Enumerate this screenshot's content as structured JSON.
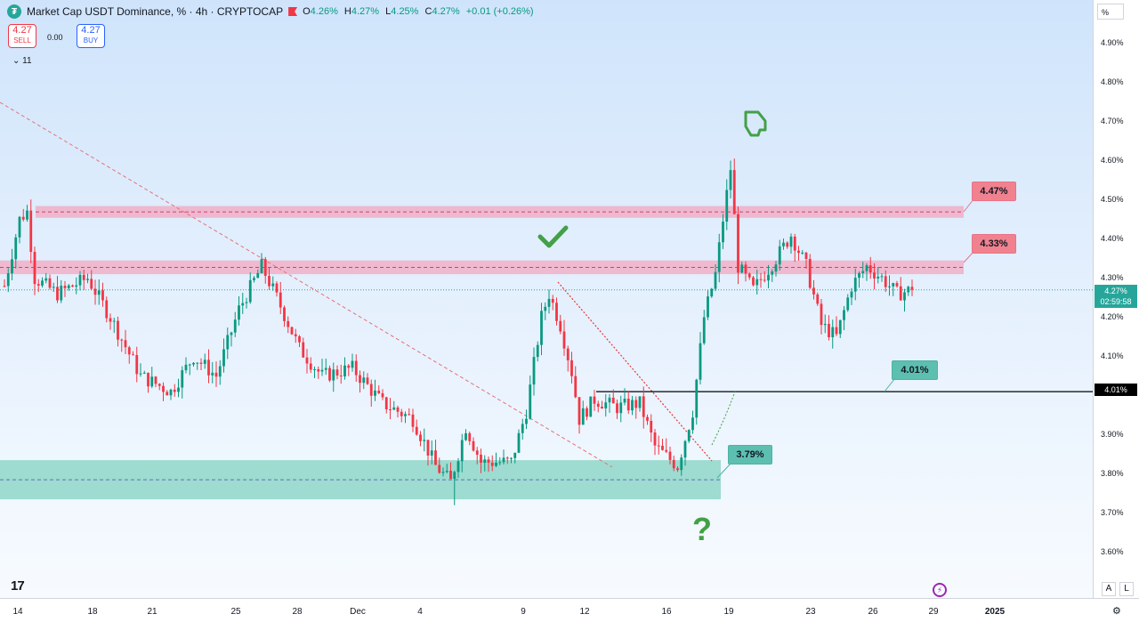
{
  "header": {
    "title": "Market Cap USDT Dominance, % · 4h · CRYPTOCAP",
    "ohlc": [
      {
        "k": "O",
        "v": "4.26%"
      },
      {
        "k": "H",
        "v": "4.27%"
      },
      {
        "k": "L",
        "v": "4.25%"
      },
      {
        "k": "C",
        "v": "4.27%"
      },
      {
        "k": "",
        "v": "+0.01 (+0.26%)"
      }
    ],
    "sell_price": "4.27",
    "sell_label": "SELL",
    "spread": "0.00",
    "buy_price": "4.27",
    "buy_label": "BUY",
    "indicators_count": "11"
  },
  "axis": {
    "unit": "%",
    "price_ticks": [
      "4.90%",
      "4.80%",
      "4.70%",
      "4.60%",
      "4.50%",
      "4.40%",
      "4.30%",
      "4.20%",
      "4.10%",
      "3.90%",
      "3.80%",
      "3.70%",
      "3.60%"
    ],
    "time_ticks": [
      "14",
      "18",
      "21",
      "25",
      "28",
      "Dec",
      "4",
      "9",
      "12",
      "16",
      "19",
      "23",
      "26",
      "29",
      "2025"
    ],
    "current_price": "4.27%",
    "countdown": "02:59:58",
    "line_price": "4.01%",
    "scale_buttons": [
      "A",
      "L"
    ]
  },
  "annotations": {
    "zone_high_label": "4.47%",
    "zone_mid_label": "4.33%",
    "level_label": "4.01%",
    "support_label": "3.79%",
    "check_icon": "check-icon",
    "hand_icon": "pointing-hand-icon",
    "question_mark": "?"
  },
  "colors": {
    "up": "#089981",
    "down": "#f23645",
    "resistance_zone": "#f0a0b8",
    "support_zone": "#8fd6c8",
    "annotation_green": "#43a047"
  },
  "chart_data": {
    "type": "candlestick",
    "symbol": "Market Cap USDT Dominance, %",
    "interval": "4h",
    "ylim": [
      3.55,
      4.96
    ],
    "x_ticks": [
      "14",
      "18",
      "21",
      "25",
      "28",
      "Dec",
      "4",
      "9",
      "12",
      "16",
      "19",
      "23",
      "26",
      "29",
      "2025"
    ],
    "anchors": [
      [
        0,
        4.28
      ],
      [
        4,
        4.45
      ],
      [
        6,
        4.47
      ],
      [
        8,
        4.3
      ],
      [
        14,
        4.26
      ],
      [
        22,
        4.3
      ],
      [
        28,
        4.2
      ],
      [
        36,
        4.05
      ],
      [
        44,
        4.01
      ],
      [
        50,
        4.1
      ],
      [
        56,
        4.05
      ],
      [
        62,
        4.22
      ],
      [
        68,
        4.33
      ],
      [
        72,
        4.25
      ],
      [
        78,
        4.12
      ],
      [
        84,
        4.05
      ],
      [
        92,
        4.07
      ],
      [
        100,
        3.98
      ],
      [
        108,
        3.94
      ],
      [
        114,
        3.82
      ],
      [
        118,
        3.78
      ],
      [
        122,
        3.92
      ],
      [
        126,
        3.83
      ],
      [
        134,
        3.83
      ],
      [
        138,
        3.96
      ],
      [
        142,
        4.2
      ],
      [
        144,
        4.26
      ],
      [
        147,
        4.18
      ],
      [
        150,
        4.06
      ],
      [
        152,
        3.94
      ],
      [
        156,
        3.99
      ],
      [
        162,
        3.97
      ],
      [
        168,
        3.98
      ],
      [
        172,
        3.87
      ],
      [
        178,
        3.82
      ],
      [
        182,
        3.96
      ],
      [
        185,
        4.2
      ],
      [
        188,
        4.31
      ],
      [
        190,
        4.45
      ],
      [
        192,
        4.58
      ],
      [
        194,
        4.33
      ],
      [
        198,
        4.27
      ],
      [
        204,
        4.35
      ],
      [
        208,
        4.41
      ],
      [
        212,
        4.33
      ],
      [
        216,
        4.18
      ],
      [
        220,
        4.15
      ],
      [
        224,
        4.28
      ],
      [
        228,
        4.33
      ],
      [
        232,
        4.3
      ],
      [
        236,
        4.26
      ],
      [
        240,
        4.27
      ]
    ],
    "candle_count": 241,
    "levels": {
      "resistance_zone_upper": [
        4.454,
        4.484
      ],
      "resistance_zone_lower": [
        4.31,
        4.345
      ],
      "support_zone": [
        3.735,
        3.835
      ],
      "horizontal_line": 4.01,
      "current": 4.27
    },
    "callouts": [
      "4.47%",
      "4.33%",
      "4.01%",
      "3.79%"
    ]
  }
}
